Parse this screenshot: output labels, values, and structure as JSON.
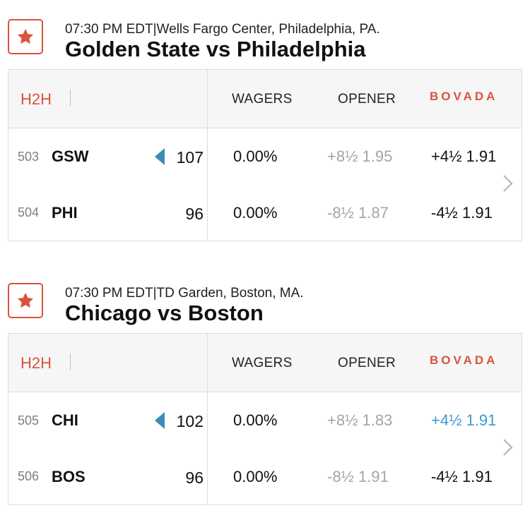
{
  "games": [
    {
      "meta": "07:30 PM EDT|Wells Fargo Center, Philadelphia, PA.",
      "title": "Golden State vs Philadelphia",
      "header": {
        "h2h": "H2H",
        "wagers": "WAGERS",
        "opener": "OPENER",
        "book": "BOVADA"
      },
      "teams": [
        {
          "num": "503",
          "abbr": "GSW",
          "score": "107",
          "winner": true,
          "wagers": "0.00%",
          "opener": "+8½ 1.95",
          "line": "+4½ 1.91",
          "line_highlight": false
        },
        {
          "num": "504",
          "abbr": "PHI",
          "score": "96",
          "winner": false,
          "wagers": "0.00%",
          "opener": "-8½ 1.87",
          "line": "-4½ 1.91",
          "line_highlight": false
        }
      ]
    },
    {
      "meta": "07:30 PM EDT|TD Garden, Boston, MA.",
      "title": "Chicago vs Boston",
      "header": {
        "h2h": "H2H",
        "wagers": "WAGERS",
        "opener": "OPENER",
        "book": "BOVADA"
      },
      "teams": [
        {
          "num": "505",
          "abbr": "CHI",
          "score": "102",
          "winner": true,
          "wagers": "0.00%",
          "opener": "+8½ 1.83",
          "line": "+4½ 1.91",
          "line_highlight": true
        },
        {
          "num": "506",
          "abbr": "BOS",
          "score": "96",
          "winner": false,
          "wagers": "0.00%",
          "opener": "-8½ 1.91",
          "line": "-4½ 1.91",
          "line_highlight": false
        }
      ]
    }
  ],
  "colors": {
    "accent": "#d9533c",
    "highlight": "#3a9bd1",
    "winner_arrow": "#3a8db5",
    "muted": "#a5a5a5"
  },
  "icons": {
    "favorite": "star-icon",
    "winner": "triangle-left-icon",
    "expand": "chevron-right-icon"
  }
}
